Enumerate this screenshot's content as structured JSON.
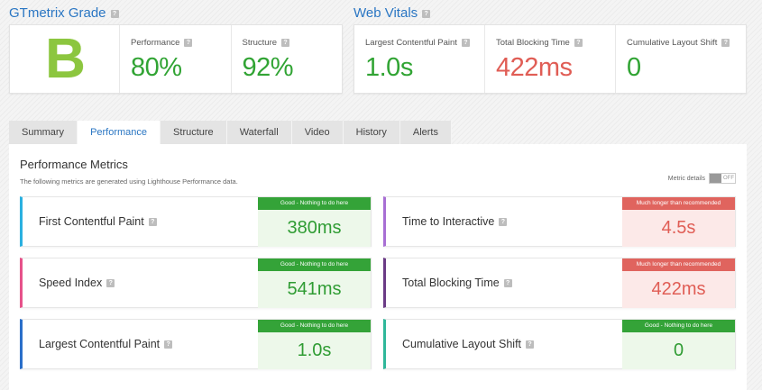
{
  "grade": {
    "title": "GTmetrix Grade",
    "letter": "B",
    "performance_label": "Performance",
    "performance_value": "80%",
    "structure_label": "Structure",
    "structure_value": "92%"
  },
  "web_vitals": {
    "title": "Web Vitals",
    "lcp_label": "Largest Contentful Paint",
    "lcp_value": "1.0s",
    "tbt_label": "Total Blocking Time",
    "tbt_value": "422ms",
    "cls_label": "Cumulative Layout Shift",
    "cls_value": "0"
  },
  "help_glyph": "?",
  "tabs": [
    {
      "label": "Summary"
    },
    {
      "label": "Performance"
    },
    {
      "label": "Structure"
    },
    {
      "label": "Waterfall"
    },
    {
      "label": "Video"
    },
    {
      "label": "History"
    },
    {
      "label": "Alerts"
    }
  ],
  "panel": {
    "title": "Performance Metrics",
    "subtitle": "The following metrics are generated using Lighthouse Performance data.",
    "details_label": "Metric details",
    "toggle_state": "OFF"
  },
  "metrics": [
    {
      "name": "First Contentful Paint",
      "badge": "Good - Nothing to do here",
      "value": "380ms",
      "status": "good",
      "accent": "#2ab0e0"
    },
    {
      "name": "Time to Interactive",
      "badge": "Much longer than recommended",
      "value": "4.5s",
      "status": "bad",
      "accent": "#a86fd4"
    },
    {
      "name": "Speed Index",
      "badge": "Good - Nothing to do here",
      "value": "541ms",
      "status": "good",
      "accent": "#e6528a"
    },
    {
      "name": "Total Blocking Time",
      "badge": "Much longer than recommended",
      "value": "422ms",
      "status": "bad",
      "accent": "#6b3b86"
    },
    {
      "name": "Largest Contentful Paint",
      "badge": "Good - Nothing to do here",
      "value": "1.0s",
      "status": "good",
      "accent": "#2a6fc9"
    },
    {
      "name": "Cumulative Layout Shift",
      "badge": "Good - Nothing to do here",
      "value": "0",
      "status": "good",
      "accent": "#2fb79a"
    }
  ],
  "colors": {
    "good": "#31a434",
    "bad": "#e05d55",
    "link": "#2a76c3",
    "grade": "#8cc63f"
  }
}
